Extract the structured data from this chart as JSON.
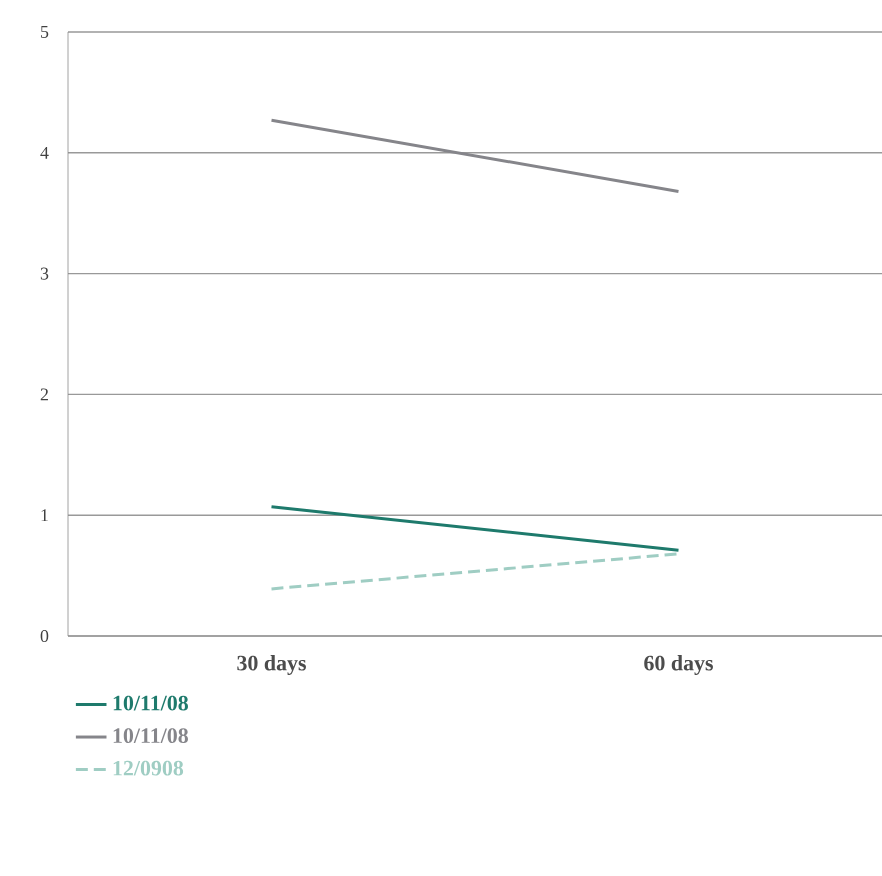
{
  "chart_data": {
    "type": "line",
    "categories": [
      "30 days",
      "60 days"
    ],
    "series": [
      {
        "name": "10/11/08",
        "color": "#1e7a6c",
        "values": [
          1.07,
          0.71
        ]
      },
      {
        "name": "10/11/08",
        "color": "#85858a",
        "values": [
          4.27,
          3.68
        ]
      },
      {
        "name": "12/0908",
        "color": "#9fcdc3",
        "values": [
          0.39,
          0.68
        ],
        "line_style": "dashed"
      }
    ],
    "ylim": [
      0,
      5
    ],
    "yticks": [
      0,
      1,
      2,
      3,
      4,
      5
    ],
    "grid": "y",
    "legend": "bottom left",
    "marker": "none"
  }
}
